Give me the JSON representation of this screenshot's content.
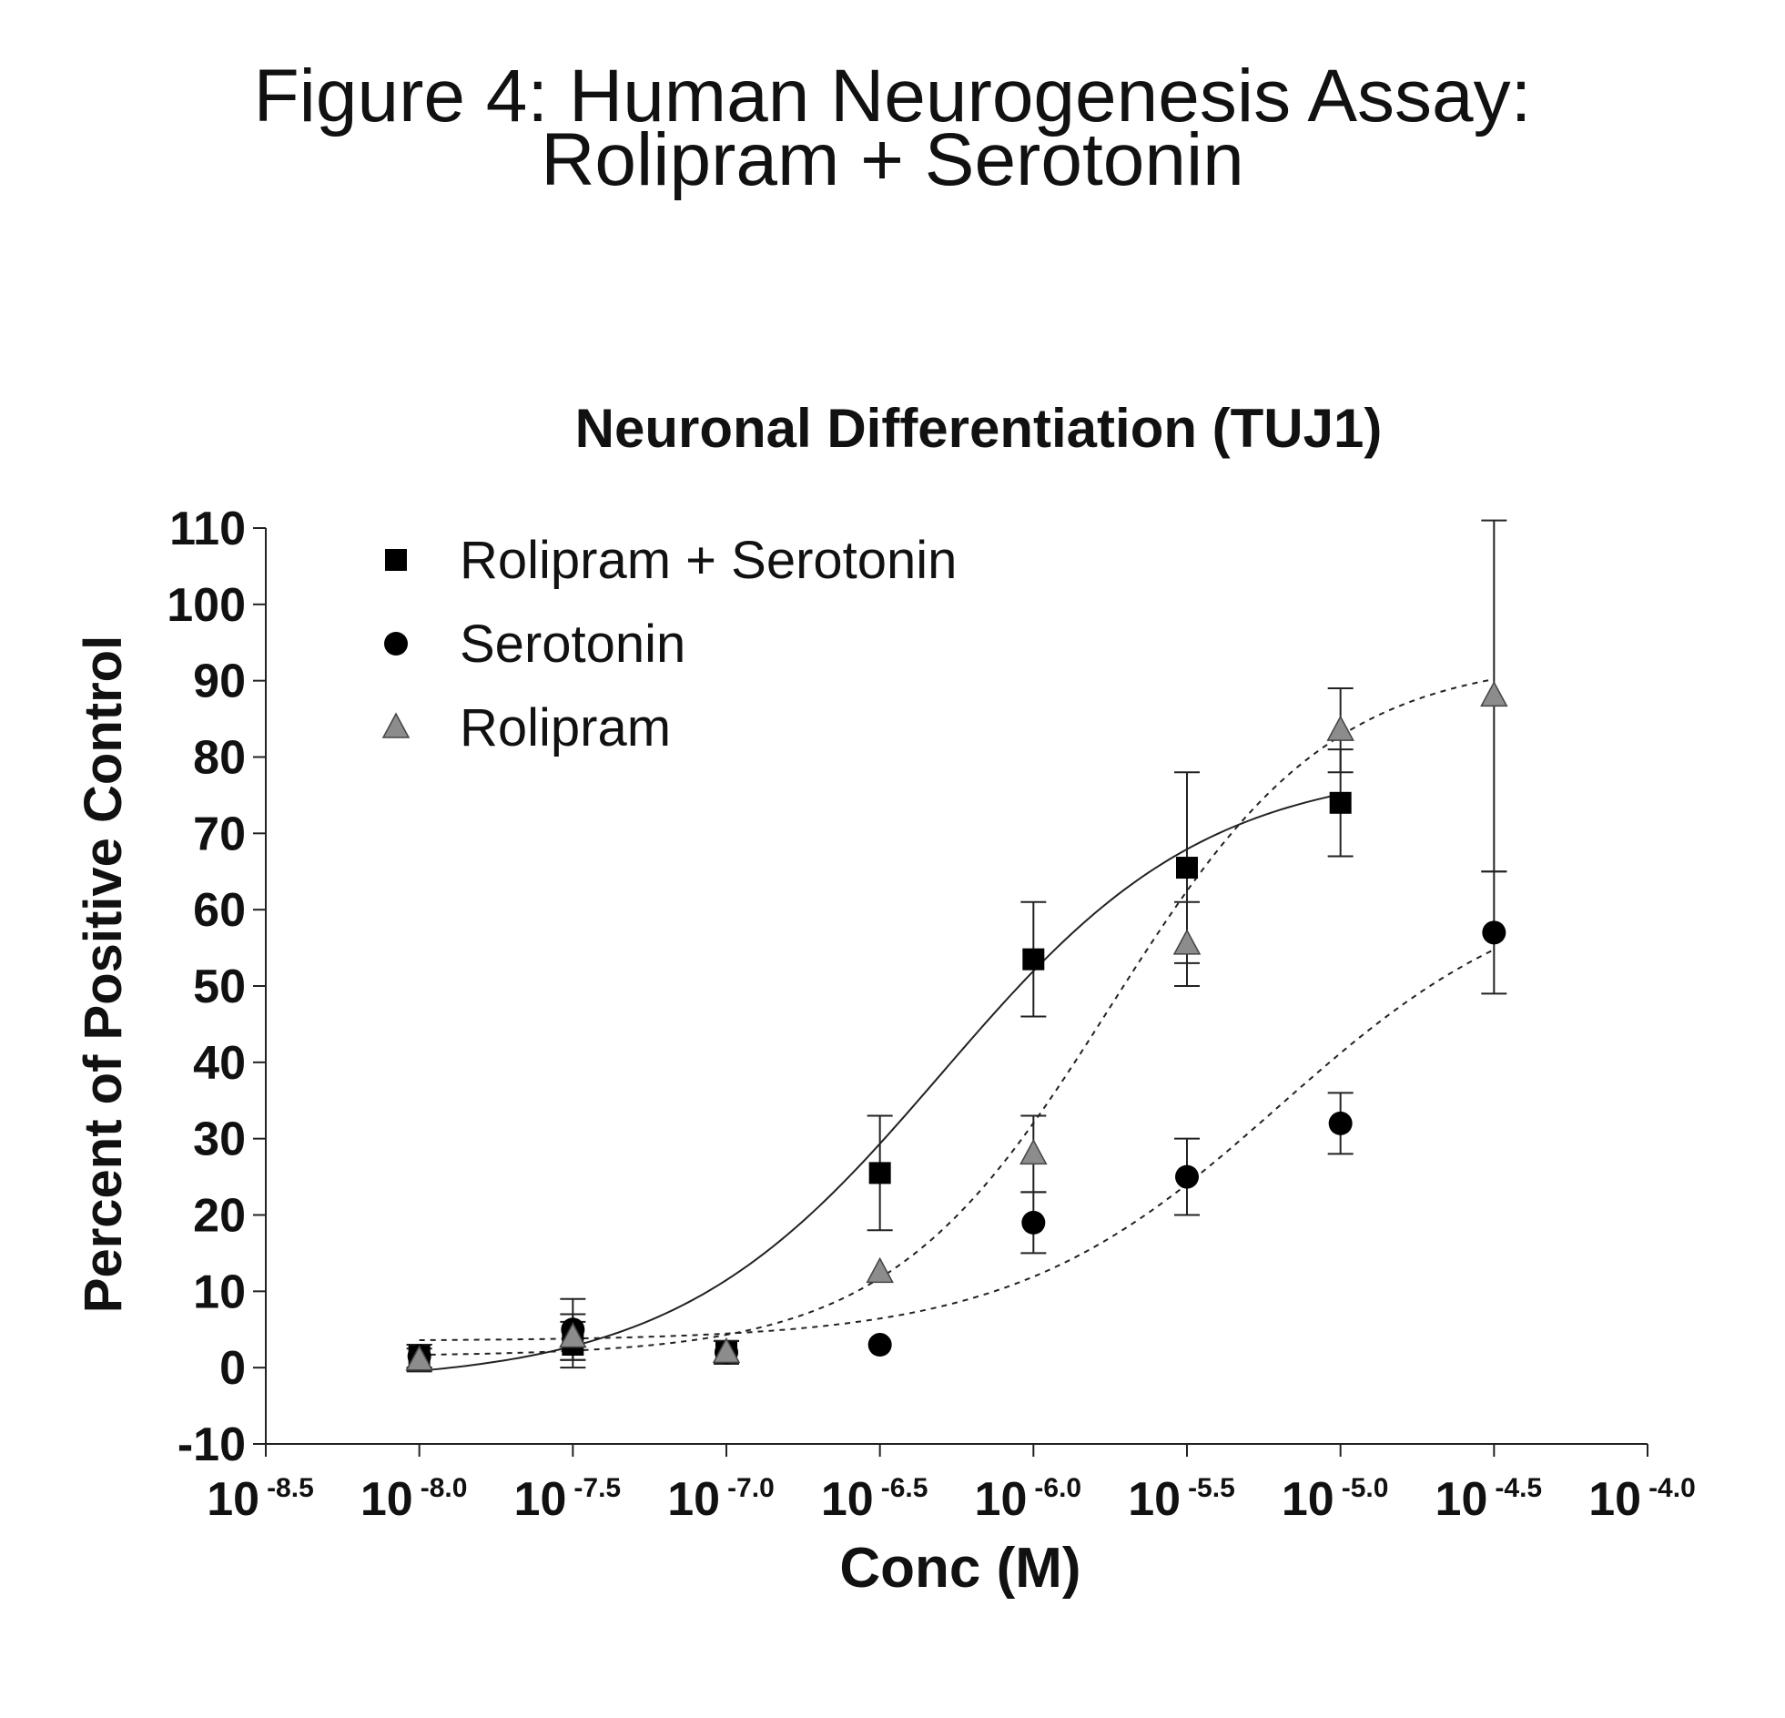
{
  "figure": {
    "title_line1": "Figure 4: Human Neurogenesis Assay:",
    "title_line2": "Rolipram + Serotonin"
  },
  "chart_data": {
    "type": "scatter",
    "title": "Neuronal Differentiation (TUJ1)",
    "xlabel": "Conc (M)",
    "ylabel": "Percent of Positive Control",
    "x_scale": "log10",
    "xlim": [
      -8.5,
      -4.0
    ],
    "ylim": [
      -10,
      110
    ],
    "x_tick_base": "10",
    "x_ticks": [
      {
        "value": -8.5,
        "exponent": "-8.5"
      },
      {
        "value": -8.0,
        "exponent": "-8.0"
      },
      {
        "value": -7.5,
        "exponent": "-7.5"
      },
      {
        "value": -7.0,
        "exponent": "-7.0"
      },
      {
        "value": -6.5,
        "exponent": "-6.5"
      },
      {
        "value": -6.0,
        "exponent": "-6.0"
      },
      {
        "value": -5.5,
        "exponent": "-5.5"
      },
      {
        "value": -5.0,
        "exponent": "-5.0"
      },
      {
        "value": -4.5,
        "exponent": "-4.5"
      },
      {
        "value": -4.0,
        "exponent": "-4.0"
      }
    ],
    "y_ticks": [
      -10,
      0,
      10,
      20,
      30,
      40,
      50,
      60,
      70,
      80,
      90,
      100,
      110
    ],
    "legend_position": "top-left",
    "series": [
      {
        "name": "Rolipram + Serotonin",
        "marker": "square",
        "color": "#000000",
        "fit_line": "solid",
        "points": [
          {
            "x": -8.0,
            "y": 1.5,
            "err": 1.5
          },
          {
            "x": -7.5,
            "y": 3.0,
            "err": 3.0
          },
          {
            "x": -7.0,
            "y": 2.0,
            "err": 1.5
          },
          {
            "x": -6.5,
            "y": 25.5,
            "err": 7.5
          },
          {
            "x": -6.0,
            "y": 53.5,
            "err": 7.5
          },
          {
            "x": -5.5,
            "y": 65.5,
            "err": 12.5
          },
          {
            "x": -5.0,
            "y": 74.0,
            "err": 7.0
          }
        ],
        "fit": {
          "bottom": -2,
          "top": 79,
          "log_ec50": -6.3,
          "hill": 1.0
        }
      },
      {
        "name": "Serotonin",
        "marker": "circle",
        "color": "#000000",
        "fit_line": "dashed",
        "points": [
          {
            "x": -8.0,
            "y": 1.5,
            "err": 1.5
          },
          {
            "x": -7.5,
            "y": 5.0,
            "err": 4.0
          },
          {
            "x": -7.0,
            "y": 2.0,
            "err": 1.5
          },
          {
            "x": -6.5,
            "y": 3.0,
            "err": 0
          },
          {
            "x": -6.0,
            "y": 19.0,
            "err": 4.0
          },
          {
            "x": -5.5,
            "y": 25.0,
            "err": 5.0
          },
          {
            "x": -5.0,
            "y": 32.0,
            "err": 4.0
          },
          {
            "x": -4.5,
            "y": 57.0,
            "err": 8.0
          }
        ],
        "fit": {
          "bottom": 3.5,
          "top": 65,
          "log_ec50": -5.2,
          "hill": 1.0
        }
      },
      {
        "name": "Rolipram",
        "marker": "triangle",
        "color": "#8c8c8c",
        "fit_line": "dashed",
        "points": [
          {
            "x": -8.0,
            "y": 1.0,
            "err": 1.5
          },
          {
            "x": -7.5,
            "y": 4.0,
            "err": 3.0
          },
          {
            "x": -7.0,
            "y": 2.0,
            "err": 1.5
          },
          {
            "x": -6.5,
            "y": 12.5,
            "err": 0
          },
          {
            "x": -6.0,
            "y": 28.0,
            "err": 5.0
          },
          {
            "x": -5.5,
            "y": 55.5,
            "err": 5.5
          },
          {
            "x": -5.0,
            "y": 83.5,
            "err": 5.5
          },
          {
            "x": -4.5,
            "y": 88.0,
            "err": 23.0
          }
        ],
        "fit": {
          "bottom": 1.5,
          "top": 93,
          "log_ec50": -5.75,
          "hill": 1.2
        }
      }
    ]
  }
}
